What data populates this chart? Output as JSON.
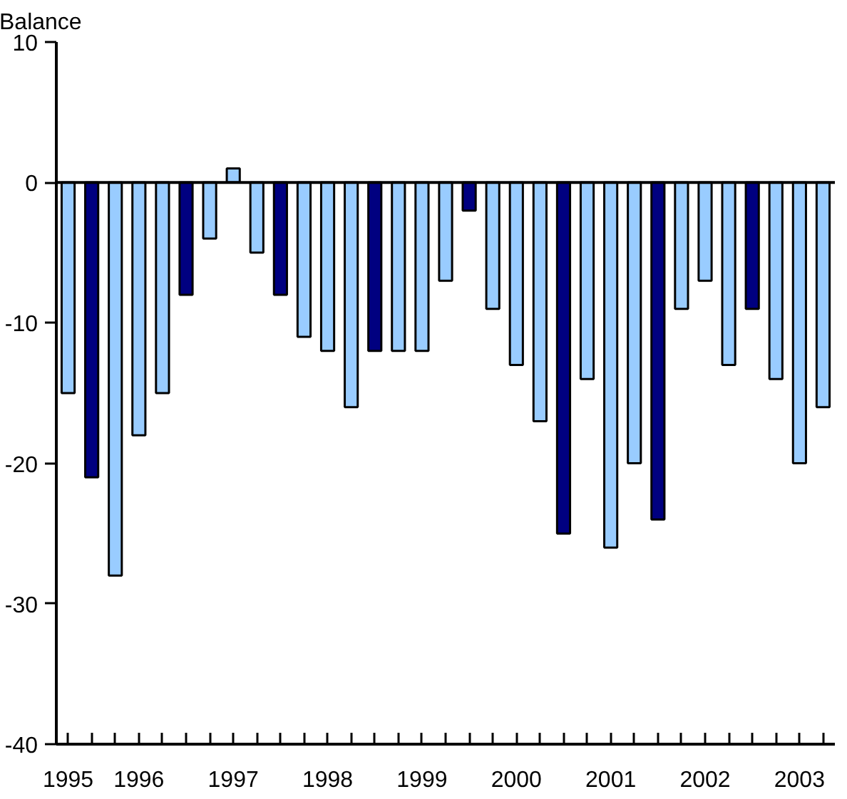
{
  "chart_data": {
    "type": "bar",
    "ylabel": "Balance",
    "categories": [
      "1995",
      null,
      null,
      "1996",
      null,
      null,
      null,
      "1997",
      null,
      null,
      null,
      "1998",
      null,
      null,
      null,
      "1999",
      null,
      null,
      null,
      "2000",
      null,
      null,
      null,
      "2001",
      null,
      null,
      null,
      "2002",
      null,
      null,
      null,
      "2003",
      null
    ],
    "values": [
      -15,
      -21,
      -28,
      -18,
      -15,
      -8,
      -4,
      1,
      -5,
      -8,
      -11,
      -12,
      -16,
      -12,
      -12,
      -12,
      -7,
      -2,
      -9,
      -13,
      -17,
      -25,
      -14,
      -26,
      -20,
      -24,
      -9,
      -7,
      -13,
      -9,
      -14,
      -20,
      -16
    ],
    "colors": [
      "#99ccff",
      "#000080",
      "#99ccff",
      "#99ccff",
      "#99ccff",
      "#000080",
      "#99ccff",
      "#99ccff",
      "#99ccff",
      "#000080",
      "#99ccff",
      "#99ccff",
      "#99ccff",
      "#000080",
      "#99ccff",
      "#99ccff",
      "#99ccff",
      "#000080",
      "#99ccff",
      "#99ccff",
      "#99ccff",
      "#000080",
      "#99ccff",
      "#99ccff",
      "#99ccff",
      "#000080",
      "#99ccff",
      "#99ccff",
      "#99ccff",
      "#000080",
      "#99ccff",
      "#99ccff",
      "#99ccff"
    ],
    "ylim": [
      -40,
      10
    ],
    "yticks": [
      -40,
      -30,
      -20,
      -10,
      0,
      10
    ],
    "ref_lines": [
      {
        "axis": "y",
        "value": 0
      }
    ]
  }
}
